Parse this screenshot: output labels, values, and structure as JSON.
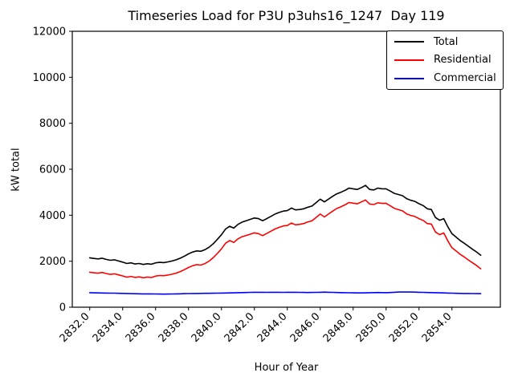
{
  "figure": {
    "title": "Timeseries Load for P3U p3uhs16_1247  Day 119",
    "xlabel": "Hour of Year",
    "ylabel": "kW total",
    "background_color": "#ffffff",
    "axes_color": "#000000"
  },
  "legend": {
    "position": "upper right",
    "items": [
      {
        "label": "Total",
        "color": "#000000"
      },
      {
        "label": "Residential",
        "color": "#ff0000"
      },
      {
        "label": "Commercial",
        "color": "#0000ff"
      }
    ]
  },
  "chart_data": {
    "type": "line",
    "title": "Timeseries Load for P3U p3uhs16_1247  Day 119",
    "xlabel": "Hour of Year",
    "ylabel": "kW total",
    "xlim": [
      2830.94,
      2856.94
    ],
    "ylim": [
      0,
      12000
    ],
    "grid": false,
    "legend_position": "upper right",
    "xticks": [
      2832,
      2834,
      2836,
      2838,
      2840,
      2842,
      2844,
      2846,
      2848,
      2850,
      2852,
      2854
    ],
    "xticklabels": [
      "2832.0",
      "2834.0",
      "2836.0",
      "2838.0",
      "2840.0",
      "2842.0",
      "2844.0",
      "2846.0",
      "2848.0",
      "2850.0",
      "2852.0",
      "2854.0"
    ],
    "yticks": [
      0,
      2000,
      4000,
      6000,
      8000,
      10000,
      12000
    ],
    "yticklabels": [
      "0",
      "2000",
      "4000",
      "6000",
      "8000",
      "10000",
      "12000"
    ],
    "x": [
      2832.0,
      2832.25,
      2832.5,
      2832.75,
      2833.0,
      2833.25,
      2833.5,
      2833.75,
      2834.0,
      2834.25,
      2834.5,
      2834.75,
      2835.0,
      2835.25,
      2835.5,
      2835.75,
      2836.0,
      2836.25,
      2836.5,
      2836.75,
      2837.0,
      2837.25,
      2837.5,
      2837.75,
      2838.0,
      2838.25,
      2838.5,
      2838.75,
      2839.0,
      2839.25,
      2839.5,
      2839.75,
      2840.0,
      2840.25,
      2840.5,
      2840.75,
      2841.0,
      2841.25,
      2841.5,
      2841.75,
      2842.0,
      2842.25,
      2842.5,
      2842.75,
      2843.0,
      2843.25,
      2843.5,
      2843.75,
      2844.0,
      2844.25,
      2844.5,
      2844.75,
      2845.0,
      2845.25,
      2845.5,
      2845.75,
      2846.0,
      2846.25,
      2846.5,
      2846.75,
      2847.0,
      2847.25,
      2847.5,
      2847.75,
      2848.0,
      2848.25,
      2848.5,
      2848.75,
      2849.0,
      2849.25,
      2849.5,
      2849.75,
      2850.0,
      2850.25,
      2850.5,
      2850.75,
      2851.0,
      2851.25,
      2851.5,
      2851.75,
      2852.0,
      2852.25,
      2852.5,
      2852.75,
      2853.0,
      2853.25,
      2853.5,
      2853.75,
      2854.0,
      2854.25,
      2854.5,
      2854.75,
      2855.0,
      2855.25,
      2855.5,
      2855.75
    ],
    "series": [
      {
        "name": "Total",
        "color": "#000000",
        "values": [
          2150,
          2120,
          2100,
          2130,
          2080,
          2040,
          2060,
          2010,
          1960,
          1900,
          1930,
          1880,
          1900,
          1860,
          1890,
          1870,
          1930,
          1950,
          1940,
          1970,
          2010,
          2060,
          2130,
          2220,
          2320,
          2400,
          2450,
          2430,
          2500,
          2610,
          2760,
          2950,
          3150,
          3400,
          3520,
          3440,
          3600,
          3700,
          3760,
          3820,
          3880,
          3850,
          3760,
          3850,
          3950,
          4050,
          4120,
          4180,
          4200,
          4310,
          4230,
          4250,
          4280,
          4350,
          4400,
          4550,
          4700,
          4580,
          4700,
          4820,
          4930,
          5000,
          5080,
          5180,
          5150,
          5120,
          5200,
          5300,
          5120,
          5100,
          5180,
          5150,
          5150,
          5050,
          4950,
          4900,
          4850,
          4720,
          4650,
          4600,
          4500,
          4420,
          4280,
          4250,
          3900,
          3780,
          3850,
          3500,
          3200,
          3050,
          2900,
          2780,
          2650,
          2520,
          2400,
          2260
        ]
      },
      {
        "name": "Residential",
        "color": "#ff0000",
        "values": [
          1520,
          1495,
          1480,
          1512,
          1465,
          1428,
          1450,
          1405,
          1360,
          1305,
          1340,
          1295,
          1318,
          1280,
          1312,
          1292,
          1355,
          1378,
          1370,
          1398,
          1435,
          1482,
          1548,
          1632,
          1728,
          1805,
          1852,
          1830,
          1898,
          2005,
          2152,
          2338,
          2535,
          2782,
          2898,
          2815,
          2970,
          3065,
          3120,
          3175,
          3232,
          3200,
          3112,
          3205,
          3302,
          3400,
          3472,
          3535,
          3552,
          3660,
          3582,
          3605,
          3638,
          3710,
          3758,
          3905,
          4050,
          3925,
          4050,
          4175,
          4290,
          4365,
          4450,
          4552,
          4525,
          4498,
          4580,
          4665,
          4490,
          4465,
          4542,
          4515,
          4520,
          4410,
          4300,
          4242,
          4190,
          4058,
          3990,
          3945,
          3850,
          3775,
          3640,
          3615,
          3270,
          3155,
          3230,
          2885,
          2590,
          2445,
          2300,
          2182,
          2055,
          1928,
          1810,
          1672
        ]
      },
      {
        "name": "Commercial",
        "color": "#0000ff",
        "values": [
          630,
          625,
          620,
          618,
          615,
          612,
          610,
          605,
          600,
          595,
          590,
          585,
          582,
          580,
          578,
          578,
          575,
          572,
          570,
          572,
          575,
          578,
          582,
          588,
          592,
          595,
          598,
          600,
          602,
          605,
          608,
          612,
          615,
          618,
          622,
          625,
          630,
          635,
          640,
          645,
          648,
          650,
          648,
          645,
          648,
          650,
          648,
          645,
          648,
          650,
          648,
          645,
          642,
          640,
          642,
          645,
          650,
          655,
          650,
          645,
          640,
          635,
          630,
          628,
          625,
          622,
          620,
          625,
          630,
          635,
          638,
          635,
          630,
          640,
          650,
          658,
          660,
          662,
          660,
          655,
          650,
          645,
          640,
          635,
          630,
          625,
          620,
          615,
          610,
          605,
          600,
          598,
          595,
          592,
          590,
          588
        ]
      }
    ]
  }
}
